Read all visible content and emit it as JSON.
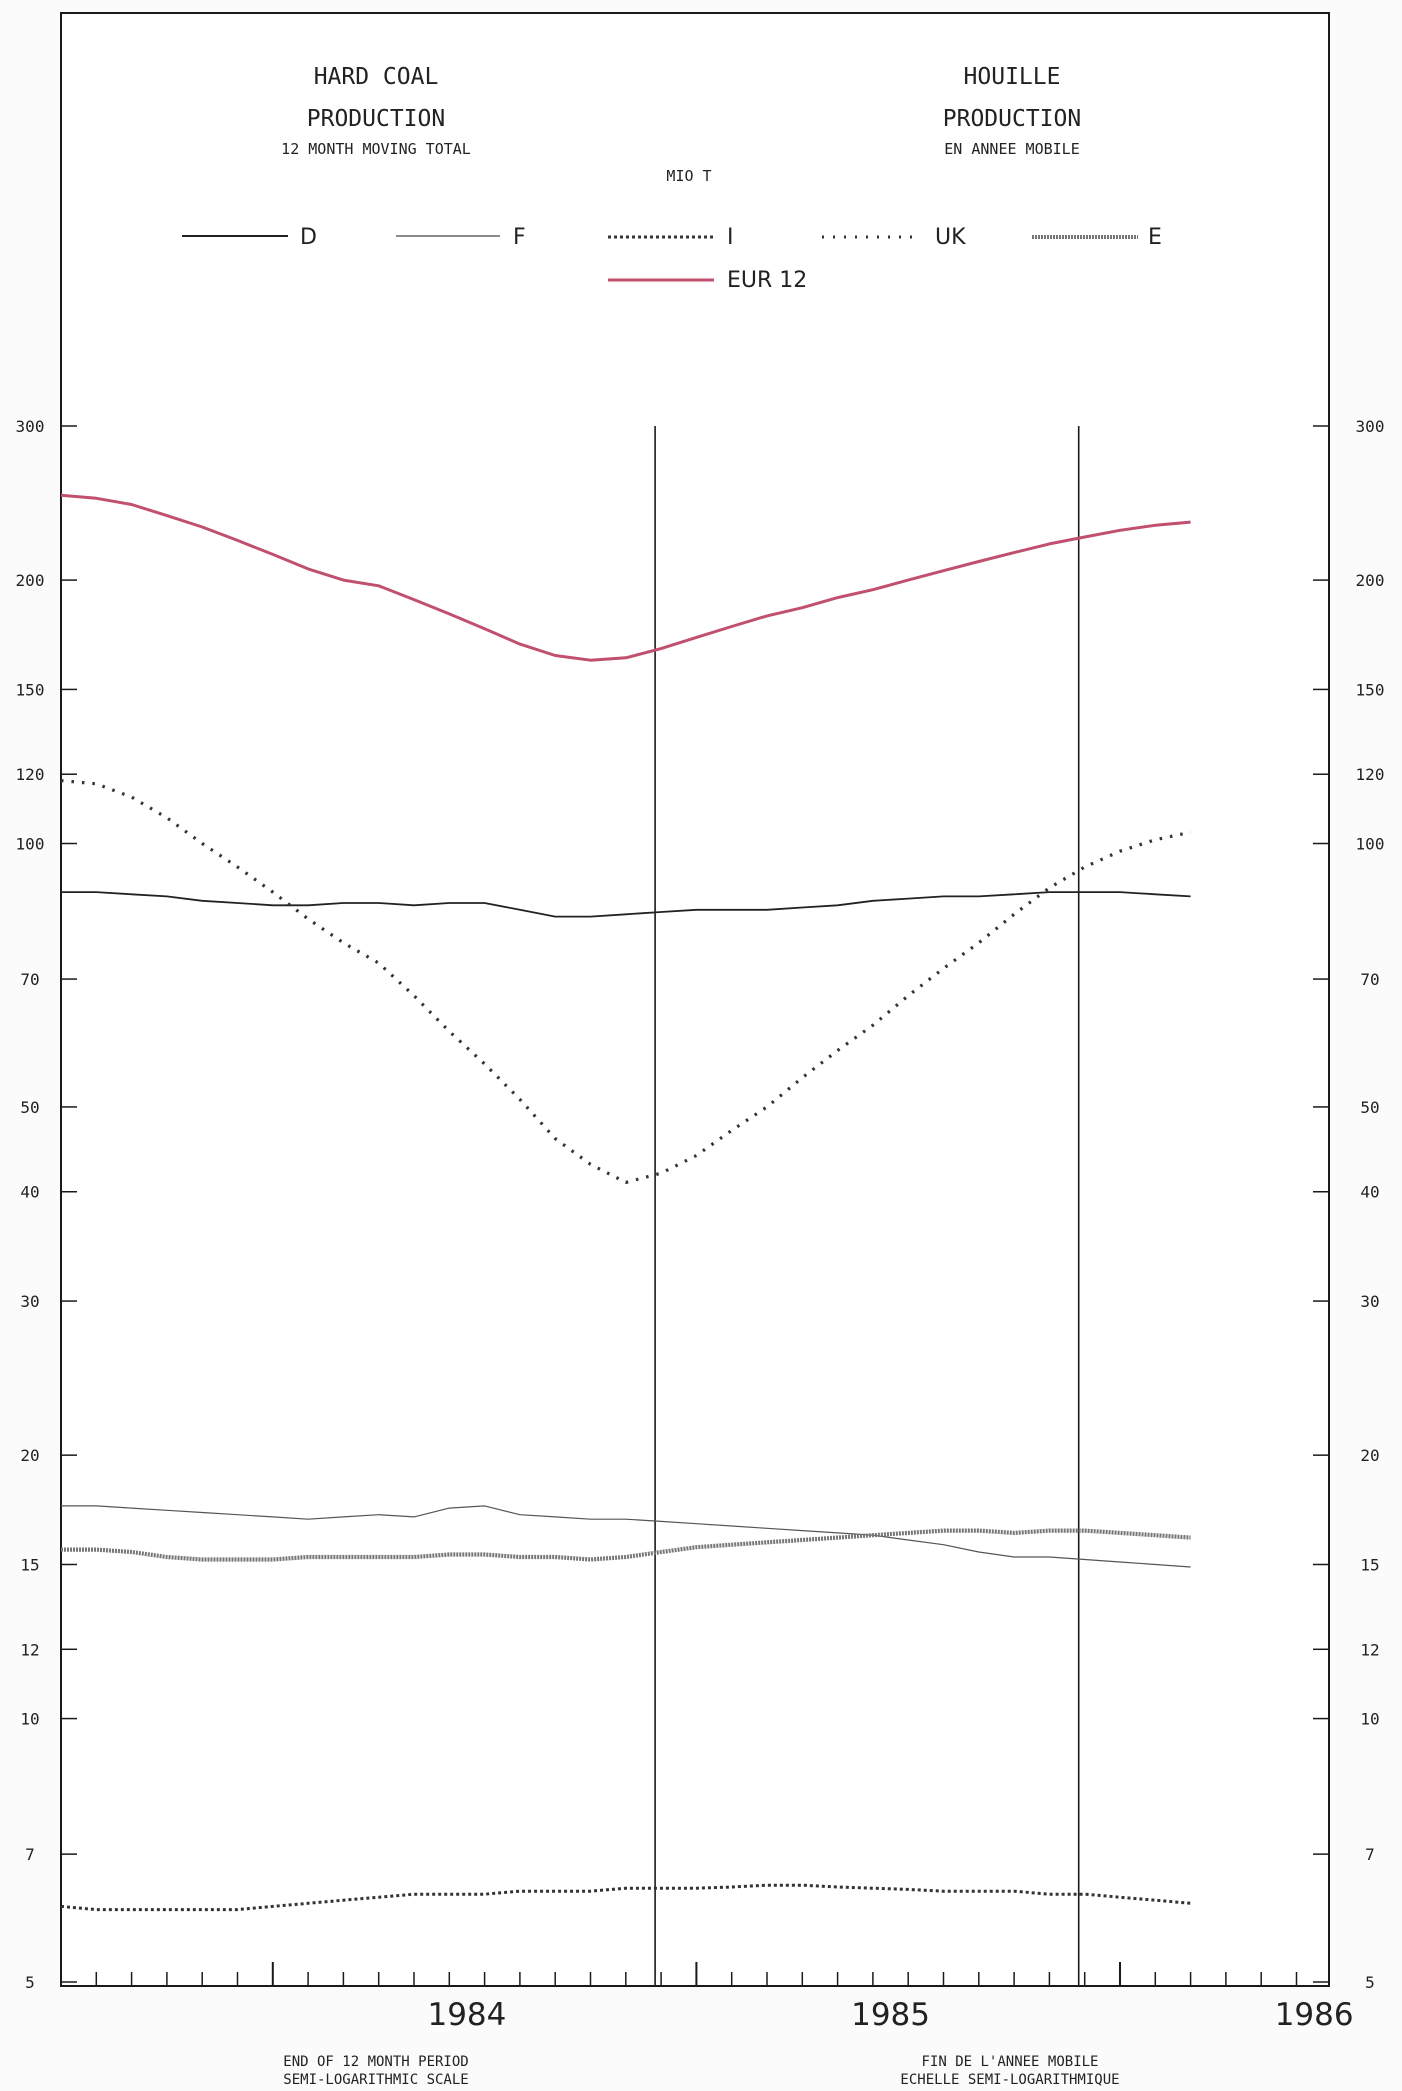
{
  "header": {
    "left_title_1": "HARD COAL",
    "left_title_2": "PRODUCTION",
    "left_subtitle": "12 MONTH MOVING TOTAL",
    "right_title_1": "HOUILLE",
    "right_title_2": "PRODUCTION",
    "right_subtitle": "EN ANNEE MOBILE",
    "unit": "MIO T"
  },
  "footer": {
    "left_1": "END OF 12 MONTH PERIOD",
    "left_2": "SEMI-LOGARITHMIC SCALE",
    "right_1": "FIN DE L'ANNEE MOBILE",
    "right_2": "ECHELLE SEMI-LOGARITHMIQUE"
  },
  "colors": {
    "eur12": "#c0506e",
    "ink": "#222222",
    "frame": "#1a1a1a"
  },
  "chart_data": {
    "type": "line",
    "y_scale": "log",
    "ylim": [
      5,
      300
    ],
    "y_ticks": [
      5,
      7,
      10,
      12,
      15,
      20,
      30,
      40,
      50,
      70,
      100,
      120,
      150,
      200,
      300
    ],
    "x_range": [
      "1983-07",
      "1986-06"
    ],
    "x_major_labels": [
      "1984",
      "1985",
      "1986"
    ],
    "year_dividers": [
      "1984-12",
      "1985-12"
    ],
    "months": [
      "1983-07",
      "1983-08",
      "1983-09",
      "1983-10",
      "1983-11",
      "1983-12",
      "1984-01",
      "1984-02",
      "1984-03",
      "1984-04",
      "1984-05",
      "1984-06",
      "1984-07",
      "1984-08",
      "1984-09",
      "1984-10",
      "1984-11",
      "1984-12",
      "1985-01",
      "1985-02",
      "1985-03",
      "1985-04",
      "1985-05",
      "1985-06",
      "1985-07",
      "1985-08",
      "1985-09",
      "1985-10",
      "1985-11",
      "1985-12",
      "1986-01",
      "1986-02",
      "1986-03"
    ],
    "series": [
      {
        "name": "D",
        "style": "solid",
        "values": [
          88,
          88,
          87.5,
          87,
          86,
          85.5,
          85,
          85,
          85.5,
          85.5,
          85,
          85.5,
          85.5,
          84,
          82.5,
          82.5,
          83,
          83.5,
          84,
          84,
          84,
          84.5,
          85,
          86,
          86.5,
          87,
          87,
          87.5,
          88,
          88,
          88,
          87.5,
          87
        ]
      },
      {
        "name": "F",
        "style": "thin",
        "values": [
          17.5,
          17.5,
          17.4,
          17.3,
          17.2,
          17.1,
          17,
          16.9,
          17,
          17.1,
          17.0,
          17.4,
          17.5,
          17.1,
          17,
          16.9,
          16.9,
          16.8,
          16.7,
          16.6,
          16.5,
          16.4,
          16.3,
          16.2,
          16.0,
          15.8,
          15.5,
          15.3,
          15.3,
          15.2,
          15.1,
          15,
          14.9
        ]
      },
      {
        "name": "I",
        "style": "crosses",
        "values": [
          6.1,
          6.05,
          6.05,
          6.05,
          6.05,
          6.05,
          6.1,
          6.15,
          6.2,
          6.25,
          6.3,
          6.3,
          6.3,
          6.35,
          6.35,
          6.35,
          6.4,
          6.4,
          6.4,
          6.42,
          6.45,
          6.45,
          6.42,
          6.4,
          6.38,
          6.35,
          6.35,
          6.35,
          6.3,
          6.3,
          6.25,
          6.2,
          6.15
        ]
      },
      {
        "name": "UK",
        "style": "dotted",
        "values": [
          118,
          117,
          113,
          107,
          100,
          94,
          88,
          82,
          77,
          73,
          67,
          61,
          56,
          51,
          46,
          43,
          41,
          42,
          44,
          47,
          50,
          54,
          58,
          62,
          67,
          72,
          77,
          83,
          89,
          94,
          98,
          101,
          103
        ]
      },
      {
        "name": "E",
        "style": "double-dotted",
        "values": [
          15.6,
          15.6,
          15.5,
          15.3,
          15.2,
          15.2,
          15.2,
          15.3,
          15.3,
          15.3,
          15.3,
          15.4,
          15.4,
          15.3,
          15.3,
          15.2,
          15.3,
          15.5,
          15.7,
          15.8,
          15.9,
          16.0,
          16.1,
          16.2,
          16.3,
          16.4,
          16.4,
          16.3,
          16.4,
          16.4,
          16.3,
          16.2,
          16.1
        ]
      },
      {
        "name": "EUR 12",
        "style": "solid-color",
        "values": [
          250,
          248,
          244,
          237,
          230,
          222,
          214,
          206,
          200,
          197,
          190,
          183,
          176,
          169,
          164,
          162,
          163,
          167,
          172,
          177,
          182,
          186,
          191,
          195,
          200,
          205,
          210,
          215,
          220,
          224,
          228,
          231,
          233
        ]
      }
    ]
  }
}
